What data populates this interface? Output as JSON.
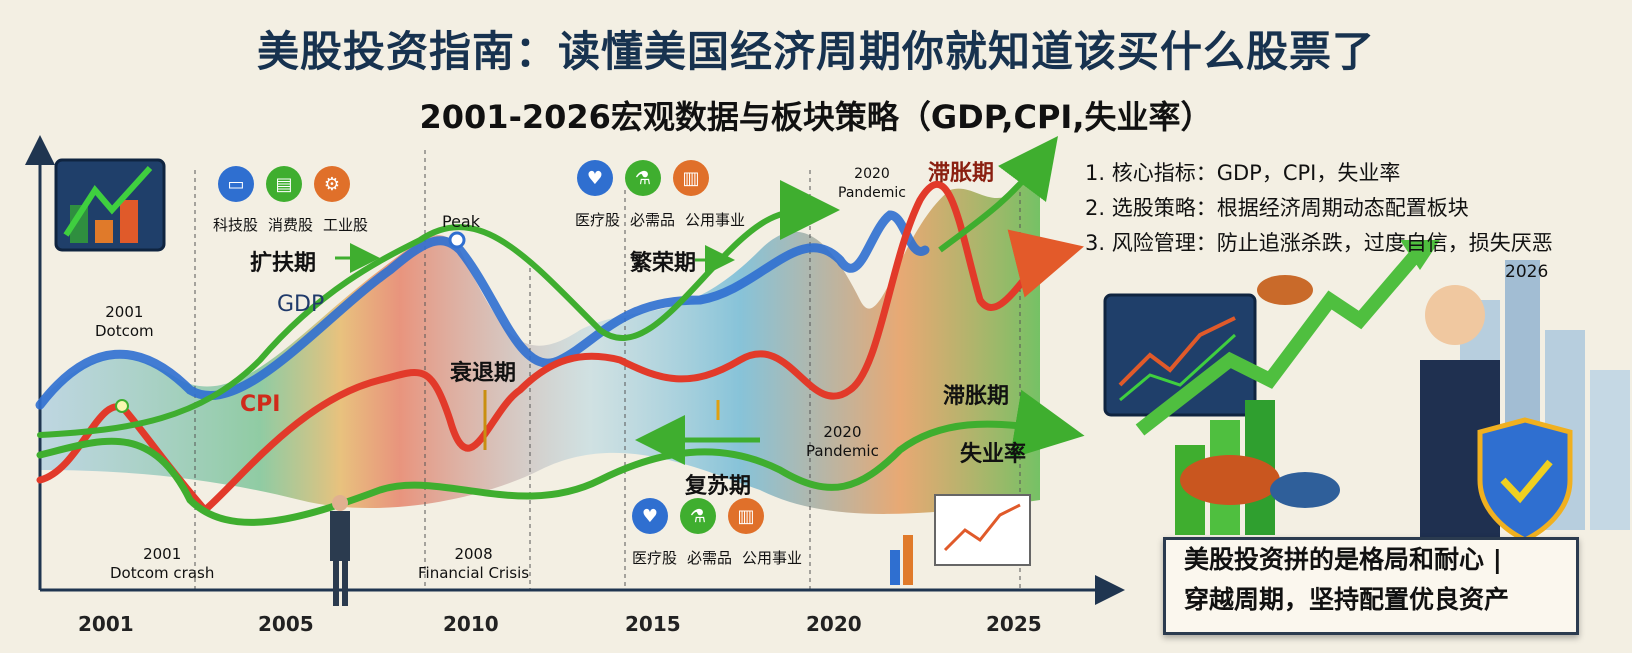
{
  "header": {
    "title": "美股投资指南：读懂美国经济周期你就知道该买什么股票了",
    "subtitle": "2001-2026宏观数据与板块策略（GDP,CPI,失业率）"
  },
  "series_labels": {
    "gdp": "GDP",
    "cpi": "CPI",
    "unemployment": "失业率"
  },
  "stages": {
    "expansion": "扩扶期",
    "recession": "衰退期",
    "prosperity": "繁荣期",
    "recovery": "复苏期",
    "stagflation_top": "滞胀期",
    "stagflation_mid": "滞胀期"
  },
  "annotations": {
    "dotcom_top_year": "2001",
    "dotcom_top_text": "Dotcom",
    "dotcom_crash_year": "2001",
    "dotcom_crash_text": "Dotcom crash",
    "peak": "Peak",
    "crisis_year": "2008",
    "crisis_text": "Financial Crisis",
    "pandemic_top_year": "2020",
    "pandemic_top_text": "Pandemic",
    "pandemic_mid_year": "2020",
    "pandemic_mid_text": "Pandemic"
  },
  "sectors_cyclical": [
    "科技股",
    "消费股",
    "工业股"
  ],
  "sectors_defensive_top": [
    "医疗股",
    "必需品",
    "公用事业"
  ],
  "sectors_defensive_bottom": [
    "医疗股",
    "必需品",
    "公用事业"
  ],
  "x_axis_years": [
    "2001",
    "2005",
    "2010",
    "2015",
    "2020",
    "2025"
  ],
  "strategy_points": [
    "1. 核心指标：GDP，CPI，失业率",
    "2. 选股策略：根据经济周期动态配置板块",
    "3. 风险管理：防止追涨杀跌，过度自信，损失厌恶"
  ],
  "illustration_year": "2026",
  "banner": {
    "line1": "美股投资拼的是格局和耐心 |",
    "line2": "穿越周期，坚持配置优良资产"
  },
  "colors": {
    "gdp": "#2f6fd0",
    "cpi": "#e23a2a",
    "unemployment": "#3fae2f",
    "title": "#17324f"
  }
}
